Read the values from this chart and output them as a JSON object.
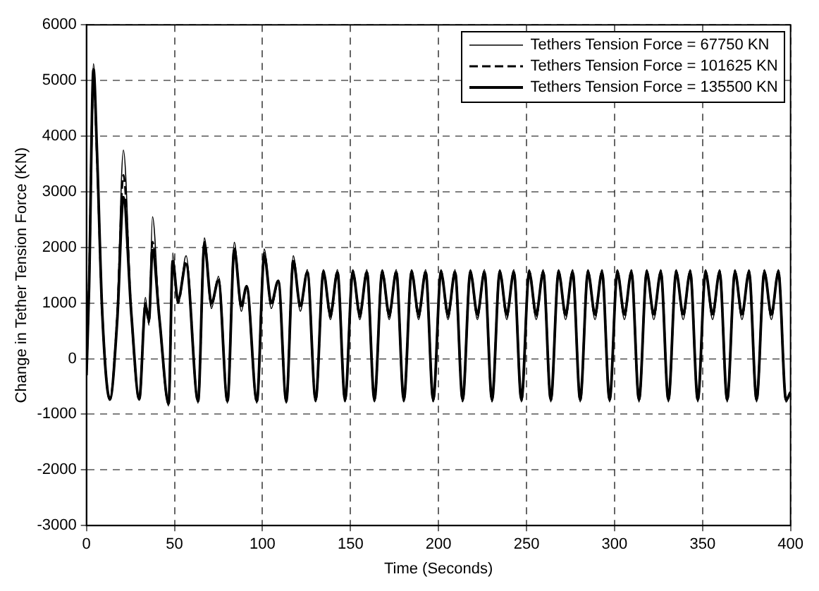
{
  "chart_data": {
    "type": "line",
    "xlabel": "Time (Seconds)",
    "ylabel": "Change in Tether Tension Force (KN)",
    "x": [
      0,
      1.5,
      4,
      6,
      9,
      13.3,
      17.5,
      21,
      25.5,
      30,
      33.5,
      35.5,
      37.5,
      41.5,
      46.7,
      49,
      52,
      56.6,
      63.4,
      67,
      71,
      75,
      80.1,
      84,
      88,
      91,
      96.8,
      101,
      105,
      109,
      113.5,
      117.5,
      121.5,
      125.5,
      130.2,
      134.6,
      138.6,
      142.6,
      146.9,
      151.3,
      155.3,
      159.3,
      163.6,
      168,
      172,
      176,
      180.3,
      184.7,
      188.7,
      192.7,
      197,
      201.4,
      205.4,
      209.4,
      213.7,
      218.1,
      222.1,
      226.1,
      230.4,
      234.8,
      238.8,
      242.8,
      247.1,
      251.5,
      255.5,
      259.5,
      263.8,
      268.2,
      272.2,
      276.2,
      280.5,
      284.9,
      288.9,
      292.9,
      297.2,
      301.6,
      305.6,
      309.6,
      313.9,
      318.3,
      322.3,
      326.3,
      330.6,
      335,
      339,
      343,
      347.3,
      351.7,
      355.7,
      359.7,
      364,
      368.4,
      372.4,
      376.4,
      380.7,
      385.1,
      389.1,
      393.1,
      397.4,
      400
    ],
    "series": [
      {
        "name": "Tethers Tension Force = 67750 KN",
        "color": "#000000",
        "line_style": "solid",
        "values": [
          -300,
          1500,
          5300,
          3800,
          800,
          -750,
          900,
          3750,
          800,
          -750,
          1100,
          600,
          2550,
          700,
          -850,
          1900,
          1000,
          1850,
          -800,
          2170,
          900,
          1480,
          -800,
          2090,
          850,
          1310,
          -800,
          1970,
          900,
          1400,
          -800,
          1850,
          850,
          1600,
          -780,
          1600,
          700,
          1600,
          -780,
          1600,
          700,
          1600,
          -780,
          1600,
          700,
          1600,
          -780,
          1600,
          700,
          1600,
          -780,
          1600,
          700,
          1600,
          -780,
          1600,
          700,
          1600,
          -780,
          1600,
          700,
          1600,
          -780,
          1600,
          700,
          1600,
          -780,
          1600,
          700,
          1600,
          -780,
          1600,
          700,
          1600,
          -780,
          1600,
          700,
          1600,
          -780,
          1600,
          700,
          1600,
          -780,
          1600,
          700,
          1600,
          -780,
          1600,
          700,
          1600,
          -780,
          1600,
          700,
          1600,
          -780,
          1600,
          700,
          1600,
          -780,
          -600
        ]
      },
      {
        "name": "Tethers Tension Force = 101625 KN",
        "color": "#000000",
        "line_style": "dashed",
        "values": [
          -300,
          1400,
          5100,
          3600,
          800,
          -740,
          800,
          3300,
          800,
          -740,
          1000,
          650,
          2100,
          700,
          -820,
          1800,
          1000,
          1750,
          -780,
          2100,
          950,
          1450,
          -780,
          2000,
          900,
          1300,
          -780,
          1900,
          950,
          1400,
          -780,
          1800,
          900,
          1580,
          -760,
          1580,
          750,
          1580,
          -760,
          1580,
          750,
          1580,
          -760,
          1580,
          750,
          1580,
          -760,
          1580,
          750,
          1580,
          -760,
          1580,
          750,
          1580,
          -760,
          1580,
          750,
          1580,
          -760,
          1580,
          750,
          1580,
          -760,
          1580,
          750,
          1580,
          -760,
          1580,
          750,
          1580,
          -760,
          1580,
          750,
          1580,
          -760,
          1580,
          750,
          1580,
          -760,
          1580,
          750,
          1580,
          -760,
          1580,
          750,
          1580,
          -760,
          1580,
          750,
          1580,
          -760,
          1580,
          750,
          1580,
          -760,
          1580,
          750,
          1580,
          -760,
          -600
        ]
      },
      {
        "name": "Tethers Tension Force = 135500 KN",
        "color": "#000000",
        "line_style": "solid",
        "values": [
          -300,
          1300,
          5200,
          3700,
          800,
          -730,
          700,
          2900,
          800,
          -730,
          950,
          700,
          1950,
          700,
          -800,
          1750,
          1050,
          1700,
          -760,
          2050,
          1000,
          1400,
          -760,
          1950,
          950,
          1300,
          -760,
          1850,
          1000,
          1400,
          -760,
          1750,
          950,
          1550,
          -740,
          1550,
          800,
          1550,
          -740,
          1550,
          800,
          1550,
          -740,
          1550,
          800,
          1550,
          -740,
          1550,
          800,
          1550,
          -740,
          1550,
          800,
          1550,
          -740,
          1550,
          800,
          1550,
          -740,
          1550,
          800,
          1550,
          -740,
          1550,
          800,
          1550,
          -740,
          1550,
          800,
          1550,
          -740,
          1550,
          800,
          1550,
          -740,
          1550,
          800,
          1550,
          -740,
          1550,
          800,
          1550,
          -740,
          1550,
          800,
          1550,
          -740,
          1550,
          800,
          1550,
          -740,
          1550,
          800,
          1550,
          -740,
          1550,
          800,
          1550,
          -740,
          -600
        ]
      }
    ],
    "xlim": [
      0,
      400
    ],
    "xticks": [
      0,
      50,
      100,
      150,
      200,
      250,
      300,
      350,
      400
    ],
    "ylim": [
      -3000,
      6000
    ],
    "yticks": [
      -3000,
      -2000,
      -1000,
      0,
      1000,
      2000,
      3000,
      4000,
      5000,
      6000
    ],
    "grid": true,
    "legend": "top right"
  }
}
